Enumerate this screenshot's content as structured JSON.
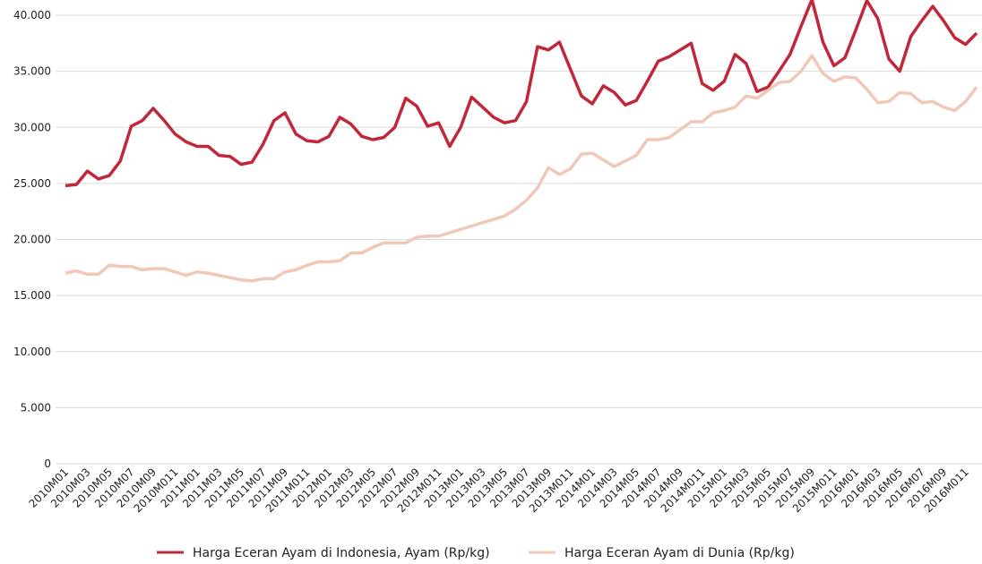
{
  "chart_data": {
    "type": "line",
    "categories": [
      "2010M01",
      null,
      "2010M03",
      null,
      "2010M05",
      null,
      "2010M07",
      null,
      "2010M09",
      null,
      "2010M011",
      null,
      "2011M01",
      null,
      "2011M03",
      null,
      "2011M05",
      null,
      "2011M07",
      null,
      "2011M09",
      null,
      "2011M011",
      null,
      "2012M01",
      null,
      "2012M03",
      null,
      "2012M05",
      null,
      "2012M07",
      null,
      "2012M09",
      null,
      "2012M011",
      null,
      "2013M01",
      null,
      "2013M03",
      null,
      "2013M05",
      null,
      "2013M07",
      null,
      "2013M09",
      null,
      "2013M011",
      null,
      "2014M01",
      null,
      "2014M03",
      null,
      "2014M05",
      null,
      "2014M07",
      null,
      "2014M09",
      null,
      "2014M011",
      null,
      "2015M01",
      null,
      "2015M03",
      null,
      "2015M05",
      null,
      "2015M07",
      null,
      "2015M09",
      null,
      "2015M011",
      null,
      "2016M01",
      null,
      "2016M03",
      null,
      "2016M05",
      null,
      "2016M07",
      null,
      "2016M09",
      null,
      "2016M011",
      null
    ],
    "series": [
      {
        "name": "Harga Eceran Ayam di Indonesia, Ayam (Rp/kg)",
        "color": "#c0283a",
        "values": [
          24800,
          24900,
          26100,
          25400,
          25700,
          27000,
          30100,
          30600,
          31700,
          30600,
          29400,
          28700,
          28300,
          28300,
          27500,
          27400,
          26700,
          26900,
          28500,
          30600,
          31300,
          29400,
          28800,
          28700,
          29200,
          30900,
          30300,
          29200,
          28900,
          29100,
          30000,
          32600,
          31900,
          30100,
          30400,
          28300,
          30000,
          32700,
          31800,
          30900,
          30400,
          30600,
          32300,
          37200,
          36900,
          37600,
          35200,
          32800,
          32100,
          33700,
          33100,
          32000,
          32400,
          34100,
          35900,
          36300,
          36900,
          37500,
          33900,
          33300,
          34100,
          36500,
          35700,
          33200,
          33600,
          35000,
          36500,
          39000,
          41400,
          37600,
          35500,
          36200,
          38700,
          41300,
          39700,
          36100,
          35000,
          38100,
          39500,
          40800,
          39500,
          38000,
          37400,
          38400
        ]
      },
      {
        "name": "Harga Eceran Ayam di Dunia (Rp/kg)",
        "color": "#f0c8b8",
        "values": [
          17000,
          17200,
          16900,
          16900,
          17700,
          17600,
          17600,
          17300,
          17400,
          17400,
          17100,
          16800,
          17100,
          17000,
          16800,
          16600,
          16400,
          16300,
          16500,
          16500,
          17100,
          17300,
          17700,
          18000,
          18000,
          18100,
          18800,
          18800,
          19300,
          19700,
          19700,
          19700,
          20200,
          20300,
          20300,
          20600,
          20900,
          21200,
          21500,
          21800,
          22100,
          22700,
          23500,
          24600,
          26400,
          25800,
          26300,
          27600,
          27700,
          27100,
          26500,
          27000,
          27500,
          28900,
          28900,
          29100,
          29800,
          30500,
          30500,
          31300,
          31500,
          31800,
          32800,
          32600,
          33300,
          34000,
          34100,
          35000,
          36400,
          34800,
          34100,
          34500,
          34400,
          33400,
          32200,
          32300,
          33100,
          33000,
          32200,
          32300,
          31800,
          31500,
          32300,
          33600
        ]
      }
    ],
    "ylim": [
      0,
      40000
    ],
    "yticks": [
      0,
      {
        "value": 5000,
        "label": "5.000"
      },
      {
        "value": 10000,
        "label": "10.000"
      },
      {
        "value": 15000,
        "label": "15.000"
      },
      {
        "value": 20000,
        "label": "20.000"
      },
      {
        "value": 25000,
        "label": "25.000"
      },
      {
        "value": 30000,
        "label": "30.000"
      },
      {
        "value": 35000,
        "label": "35.000"
      },
      {
        "value": 40000,
        "label": "40.000"
      }
    ],
    "grid": true,
    "legend": "bottom"
  }
}
